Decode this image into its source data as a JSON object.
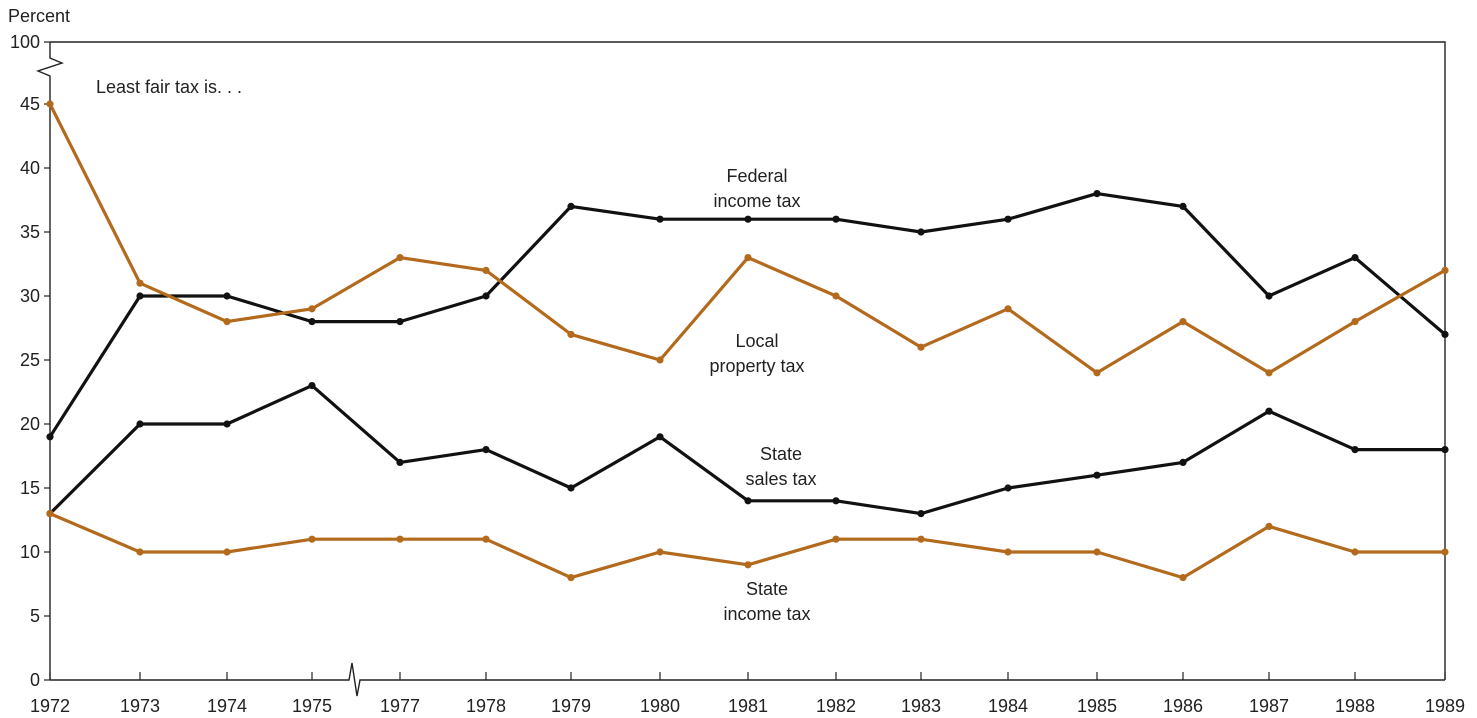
{
  "chart_data": {
    "type": "line",
    "subtitle": "Least fair tax is. . .",
    "ylabel": "Percent",
    "ylim": [
      0,
      100
    ],
    "y_axis_break": "between 45 and 100",
    "y_ticks": [
      0,
      5,
      10,
      15,
      20,
      25,
      30,
      35,
      40,
      45,
      100
    ],
    "x_axis_break": "between 1975 and 1977",
    "x": [
      "1972",
      "1973",
      "1974",
      "1975",
      "1977",
      "1978",
      "1979",
      "1980",
      "1981",
      "1982",
      "1983",
      "1984",
      "1985",
      "1986",
      "1987",
      "1988",
      "1989"
    ],
    "grid": false,
    "series": [
      {
        "name": "Federal income tax",
        "label_lines": [
          "Federal",
          "income tax"
        ],
        "color": "#111111",
        "values": [
          19,
          30,
          30,
          28,
          28,
          30,
          37,
          36,
          36,
          36,
          35,
          36,
          38,
          37,
          30,
          33,
          27
        ]
      },
      {
        "name": "Local property tax",
        "label_lines": [
          "Local",
          "property tax"
        ],
        "color": "#b36a1c",
        "values": [
          45,
          31,
          28,
          29,
          33,
          32,
          27,
          25,
          33,
          30,
          26,
          29,
          24,
          28,
          24,
          28,
          32
        ]
      },
      {
        "name": "State sales tax",
        "label_lines": [
          "State",
          "sales tax"
        ],
        "color": "#111111",
        "values": [
          13,
          20,
          20,
          23,
          17,
          18,
          15,
          19,
          14,
          14,
          13,
          15,
          16,
          17,
          21,
          18,
          18
        ]
      },
      {
        "name": "State income tax",
        "label_lines": [
          "State",
          "income tax"
        ],
        "color": "#b36a1c",
        "values": [
          13,
          10,
          10,
          11,
          11,
          11,
          8,
          10,
          9,
          11,
          11,
          10,
          10,
          8,
          12,
          10,
          10
        ]
      }
    ]
  }
}
